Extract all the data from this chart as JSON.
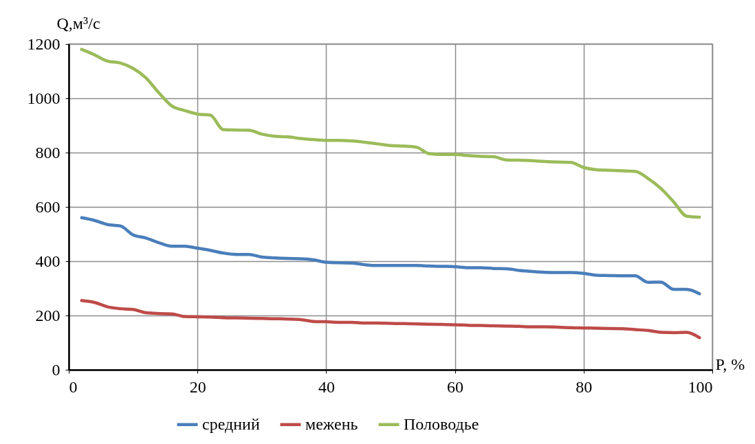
{
  "chart_data": {
    "type": "line",
    "xlabel": "P, %",
    "ylabel": "Q,м³/с",
    "x": [
      2,
      4,
      6,
      8,
      10,
      12,
      14,
      16,
      18,
      20,
      22,
      24,
      26,
      28,
      30,
      32,
      34,
      36,
      38,
      40,
      42,
      44,
      46,
      48,
      50,
      52,
      54,
      56,
      58,
      60,
      62,
      64,
      66,
      68,
      70,
      72,
      74,
      76,
      78,
      80,
      82,
      84,
      86,
      88,
      90,
      92,
      94,
      96,
      98
    ],
    "series": [
      {
        "name": "средний",
        "color": "#4a7ebb",
        "values": [
          560,
          550,
          535,
          530,
          497,
          485,
          468,
          455,
          455,
          448,
          440,
          430,
          425,
          425,
          415,
          412,
          410,
          409,
          405,
          396,
          394,
          393,
          387,
          384,
          384,
          384,
          384,
          382,
          381,
          380,
          376,
          376,
          373,
          372,
          366,
          362,
          359,
          358,
          358,
          355,
          348,
          347,
          346,
          346,
          322,
          323,
          296,
          296,
          280
        ]
      },
      {
        "name": "межень",
        "color": "#be4b48",
        "values": [
          255,
          248,
          232,
          225,
          222,
          210,
          207,
          206,
          196,
          195,
          194,
          192,
          191,
          190,
          189,
          188,
          187,
          185,
          178,
          177,
          175,
          175,
          172,
          172,
          171,
          170,
          169,
          168,
          167,
          166,
          164,
          163,
          162,
          161,
          160,
          158,
          158,
          157,
          155,
          154,
          153,
          152,
          151,
          148,
          145,
          138,
          137,
          138,
          118
        ]
      },
      {
        "name": "Половодье",
        "color": "#9bbb59",
        "values": [
          1180,
          1160,
          1137,
          1130,
          1110,
          1075,
          1020,
          972,
          955,
          942,
          938,
          885,
          883,
          882,
          868,
          860,
          858,
          852,
          848,
          845,
          845,
          843,
          838,
          832,
          826,
          824,
          820,
          796,
          793,
          793,
          789,
          786,
          785,
          773,
          772,
          770,
          767,
          765,
          764,
          745,
          737,
          735,
          733,
          731,
          705,
          668,
          618,
          566,
          562
        ]
      }
    ],
    "xlim": [
      0,
      100
    ],
    "xticks": [
      0,
      20,
      40,
      60,
      80,
      100
    ],
    "ylim": [
      0,
      1200
    ],
    "yticks": [
      0,
      200,
      400,
      600,
      800,
      1000,
      1200
    ],
    "grid": true,
    "legend": "bottom",
    "marker": "none",
    "line_style": "solid"
  }
}
